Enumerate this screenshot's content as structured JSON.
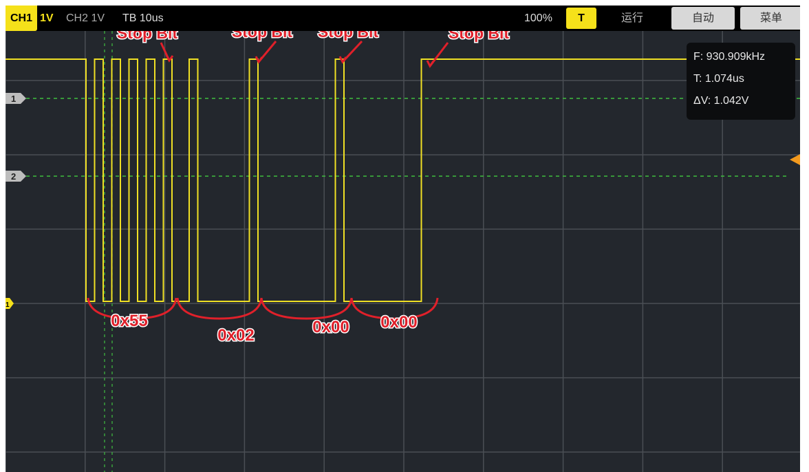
{
  "topbar": {
    "ch1_label": "CH1",
    "ch1_scale": "1V",
    "ch2_label": "CH2 1V",
    "timebase": "TB 10us",
    "zoom": "100%",
    "trigger_button": "T",
    "run_status": "运行",
    "auto_button": "自动",
    "menu_button": "菜单"
  },
  "measurements": {
    "frequency": "F: 930.909kHz",
    "period": "T: 1.074us",
    "delta_v": "ΔV: 1.042V"
  },
  "markers": {
    "ch1_marker": "1",
    "ch2_marker": "2",
    "ch1_ground": "1"
  },
  "annotations": {
    "stop_bits": [
      "Stop Bit",
      "Stop Bit",
      "Stop Bit",
      "Stop Bit"
    ],
    "bytes": [
      "0x55",
      "0x02",
      "0x00",
      "0x00"
    ]
  },
  "colors": {
    "trace": "#f0e024",
    "annotation": "#e0202a",
    "grid": "#4a4f55",
    "cursor": "#3fbf3f",
    "trigger_marker": "#f39a1e"
  }
}
